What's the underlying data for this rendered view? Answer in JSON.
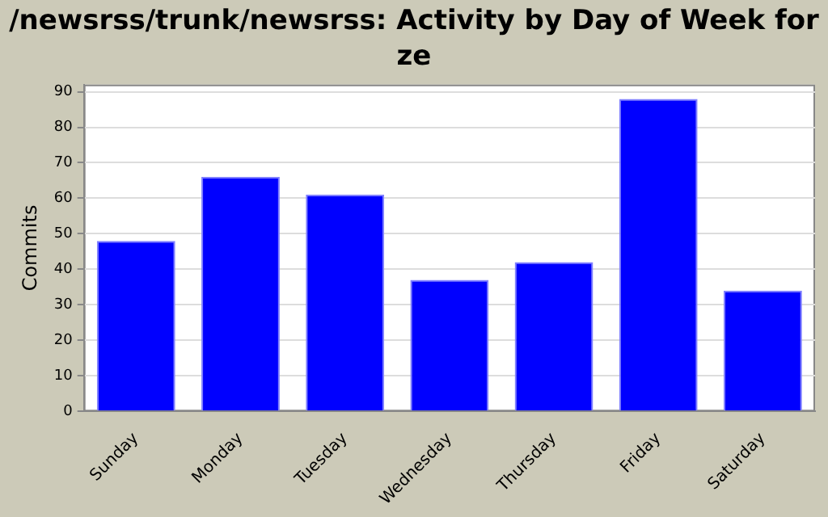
{
  "chart_data": {
    "type": "bar",
    "title": "/newsrss/trunk/newsrss: Activity by Day of Week for ze",
    "ylabel": "Commits",
    "categories": [
      "Sunday",
      "Monday",
      "Tuesday",
      "Wednesday",
      "Thursday",
      "Friday",
      "Saturday"
    ],
    "values": [
      48,
      66,
      61,
      37,
      42,
      88,
      34
    ],
    "color": "#0000ff",
    "ylim": [
      0,
      92
    ],
    "yticks": [
      0,
      10,
      20,
      30,
      40,
      50,
      60,
      70,
      80,
      90
    ],
    "grid": "y",
    "legend": false
  }
}
